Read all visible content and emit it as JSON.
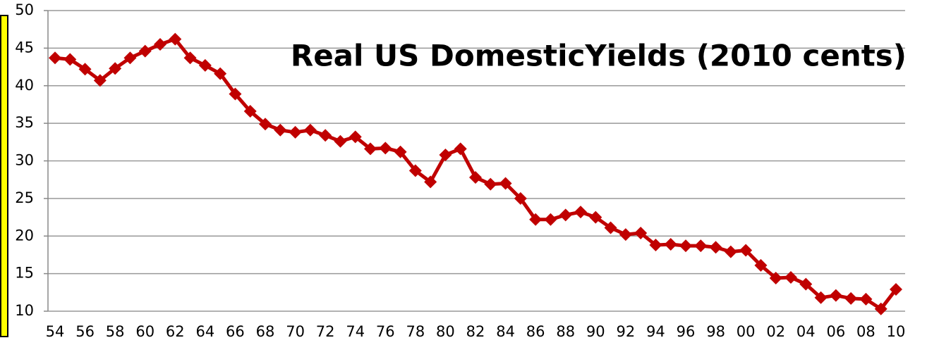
{
  "chart_data": {
    "type": "line",
    "title": "Real US DomesticYields (2010 cents)",
    "categories": [
      "54",
      null,
      "56",
      null,
      "58",
      null,
      "60",
      null,
      "62",
      null,
      "64",
      null,
      "66",
      null,
      "68",
      null,
      "70",
      null,
      "72",
      null,
      "74",
      null,
      "76",
      null,
      "78",
      null,
      "80",
      null,
      "82",
      null,
      "84",
      null,
      "86",
      null,
      "88",
      null,
      "90",
      null,
      "92",
      null,
      "94",
      null,
      "96",
      null,
      "98",
      null,
      "00",
      null,
      "02",
      null,
      "04",
      null,
      "06",
      null,
      "08",
      null,
      "10"
    ],
    "series": [
      {
        "name": "Real US Domestic Yields",
        "color": "#c00000",
        "values": [
          43.7,
          43.5,
          42.2,
          40.7,
          42.3,
          43.7,
          44.6,
          45.5,
          46.2,
          43.7,
          42.7,
          41.6,
          38.9,
          36.6,
          34.9,
          34.1,
          33.8,
          34.1,
          33.4,
          32.6,
          33.2,
          31.6,
          31.7,
          31.2,
          28.7,
          27.2,
          30.8,
          31.6,
          27.8,
          26.9,
          27.0,
          25.0,
          22.2,
          22.2,
          22.8,
          23.2,
          22.5,
          21.1,
          20.2,
          20.4,
          18.8,
          18.9,
          18.7,
          18.7,
          18.5,
          17.9,
          18.1,
          16.1,
          14.4,
          14.5,
          13.6,
          11.8,
          12.1,
          11.7,
          11.6,
          10.3,
          12.9
        ]
      }
    ],
    "ylim": [
      10,
      50
    ],
    "yticks": [
      10,
      15,
      20,
      25,
      30,
      35,
      40,
      45,
      50
    ],
    "grid": true
  }
}
